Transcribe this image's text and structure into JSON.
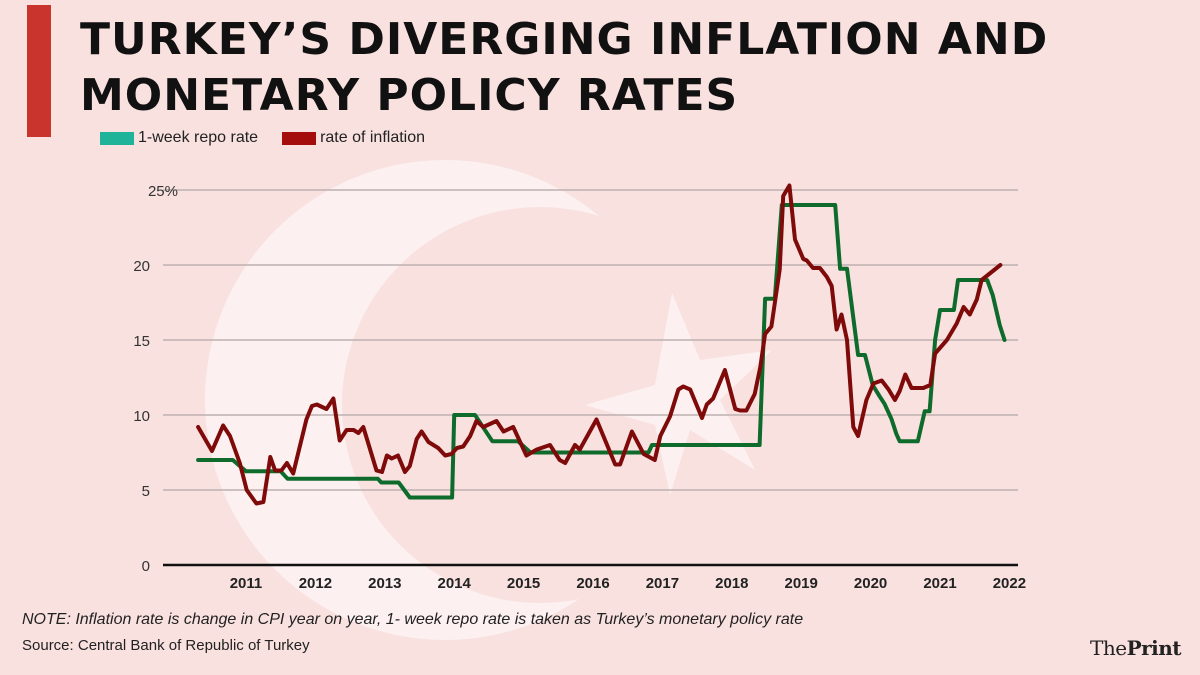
{
  "title_line1": "TURKEY’S DIVERGING INFLATION AND",
  "title_line2": "MONETARY POLICY RATES",
  "note": "NOTE: Inflation rate is change in CPI year on year, 1- week repo rate is taken as Turkey’s monetary policy rate",
  "source": "Source: Central Bank of Republic of Turkey",
  "logo": {
    "part1": "The",
    "part2": "Print"
  },
  "colors": {
    "background": "#f9e1e0",
    "accent_bar": "#c9352c",
    "repo_legend": "#1fb39a",
    "repo_line": "#0e6b2c",
    "inflation": "#7f0a0a"
  },
  "chart_data": {
    "type": "line",
    "title": "",
    "xlabel": "",
    "ylabel": "",
    "xlim": [
      2010.2,
      2022.1
    ],
    "ylim": [
      0,
      25
    ],
    "grid": true,
    "legend_placement": "top-left",
    "x_ticks": [
      "2011",
      "2012",
      "2013",
      "2014",
      "2015",
      "2016",
      "2017",
      "2018",
      "2019",
      "2020",
      "2021",
      "2022"
    ],
    "y_ticks": [
      {
        "value": 0,
        "label": "0"
      },
      {
        "value": 5,
        "label": "5"
      },
      {
        "value": 10,
        "label": "10"
      },
      {
        "value": 15,
        "label": "15"
      },
      {
        "value": 20,
        "label": "20"
      },
      {
        "value": 25,
        "label": "25%"
      }
    ],
    "series": [
      {
        "name": "1-week repo rate",
        "x": [
          2010.31,
          2010.81,
          2011.0,
          2011.5,
          2011.6,
          2012.9,
          2012.95,
          2013.2,
          2013.36,
          2013.97,
          2014.0,
          2014.3,
          2014.55,
          2014.92,
          2015.1,
          2016.8,
          2016.85,
          2018.4,
          2018.48,
          2018.62,
          2018.72,
          2019.49,
          2019.56,
          2019.66,
          2019.82,
          2019.92,
          2020.03,
          2020.13,
          2020.2,
          2020.3,
          2020.37,
          2020.42,
          2020.68,
          2020.78,
          2020.85,
          2020.93,
          2021.0,
          2021.2,
          2021.26,
          2021.68,
          2021.76,
          2021.86,
          2021.93
        ],
        "values": [
          7.0,
          7.0,
          6.25,
          6.25,
          5.75,
          5.75,
          5.5,
          5.5,
          4.5,
          4.5,
          10.0,
          10.0,
          8.25,
          8.25,
          7.5,
          7.5,
          8.0,
          8.0,
          17.75,
          17.75,
          24.0,
          24.0,
          19.75,
          19.75,
          14.0,
          14.0,
          12.0,
          11.25,
          10.75,
          9.75,
          8.75,
          8.25,
          8.25,
          10.25,
          10.25,
          15.0,
          17.0,
          17.0,
          19.0,
          19.0,
          18.0,
          16.0,
          15.0
        ]
      },
      {
        "name": "rate of inflation",
        "x": [
          2010.31,
          2010.51,
          2010.67,
          2010.77,
          2010.91,
          2011.01,
          2011.15,
          2011.25,
          2011.35,
          2011.42,
          2011.51,
          2011.59,
          2011.68,
          2011.87,
          2011.95,
          2012.02,
          2012.16,
          2012.26,
          2012.35,
          2012.45,
          2012.55,
          2012.62,
          2012.69,
          2012.88,
          2012.96,
          2013.03,
          2013.1,
          2013.19,
          2013.29,
          2013.36,
          2013.46,
          2013.53,
          2013.63,
          2013.77,
          2013.87,
          2013.96,
          2014.04,
          2014.13,
          2014.23,
          2014.32,
          2014.42,
          2014.61,
          2014.71,
          2014.85,
          2015.04,
          2015.19,
          2015.38,
          2015.52,
          2015.6,
          2015.74,
          2015.81,
          2016.05,
          2016.32,
          2016.39,
          2016.56,
          2016.73,
          2016.89,
          2016.97,
          2017.11,
          2017.23,
          2017.3,
          2017.4,
          2017.57,
          2017.64,
          2017.73,
          2017.9,
          2018.05,
          2018.12,
          2018.21,
          2018.33,
          2018.41,
          2018.48,
          2018.57,
          2018.69,
          2018.74,
          2018.83,
          2018.91,
          2019.03,
          2019.08,
          2019.17,
          2019.27,
          2019.37,
          2019.44,
          2019.51,
          2019.58,
          2019.66,
          2019.75,
          2019.82,
          2019.94,
          2020.04,
          2020.16,
          2020.26,
          2020.35,
          2020.42,
          2020.5,
          2020.59,
          2020.76,
          2020.86,
          2020.93,
          2021.1,
          2021.24,
          2021.34,
          2021.43,
          2021.53,
          2021.6,
          2021.87
        ],
        "values": [
          9.2,
          7.6,
          9.3,
          8.6,
          6.8,
          5.0,
          4.1,
          4.2,
          7.2,
          6.3,
          6.3,
          6.8,
          6.1,
          9.7,
          10.6,
          10.7,
          10.4,
          11.1,
          8.3,
          9.0,
          9.0,
          8.8,
          9.2,
          6.3,
          6.2,
          7.3,
          7.1,
          7.3,
          6.2,
          6.6,
          8.4,
          8.9,
          8.2,
          7.8,
          7.3,
          7.4,
          7.8,
          7.9,
          8.6,
          9.6,
          9.2,
          9.6,
          8.9,
          9.2,
          7.3,
          7.7,
          8.0,
          7.0,
          6.8,
          8.0,
          7.7,
          9.7,
          6.7,
          6.7,
          8.9,
          7.4,
          7.0,
          8.6,
          9.9,
          11.7,
          11.9,
          11.7,
          9.8,
          10.7,
          11.1,
          13.0,
          10.4,
          10.3,
          10.3,
          11.4,
          13.2,
          15.4,
          15.9,
          19.7,
          24.6,
          25.3,
          21.7,
          20.4,
          20.3,
          19.8,
          19.8,
          19.2,
          18.6,
          15.7,
          16.7,
          15.0,
          9.2,
          8.6,
          11.0,
          12.1,
          12.3,
          11.7,
          11.0,
          11.6,
          12.7,
          11.8,
          11.8,
          12.0,
          14.1,
          15.0,
          16.1,
          17.2,
          16.7,
          17.7,
          19.0,
          20.0
        ]
      }
    ]
  }
}
